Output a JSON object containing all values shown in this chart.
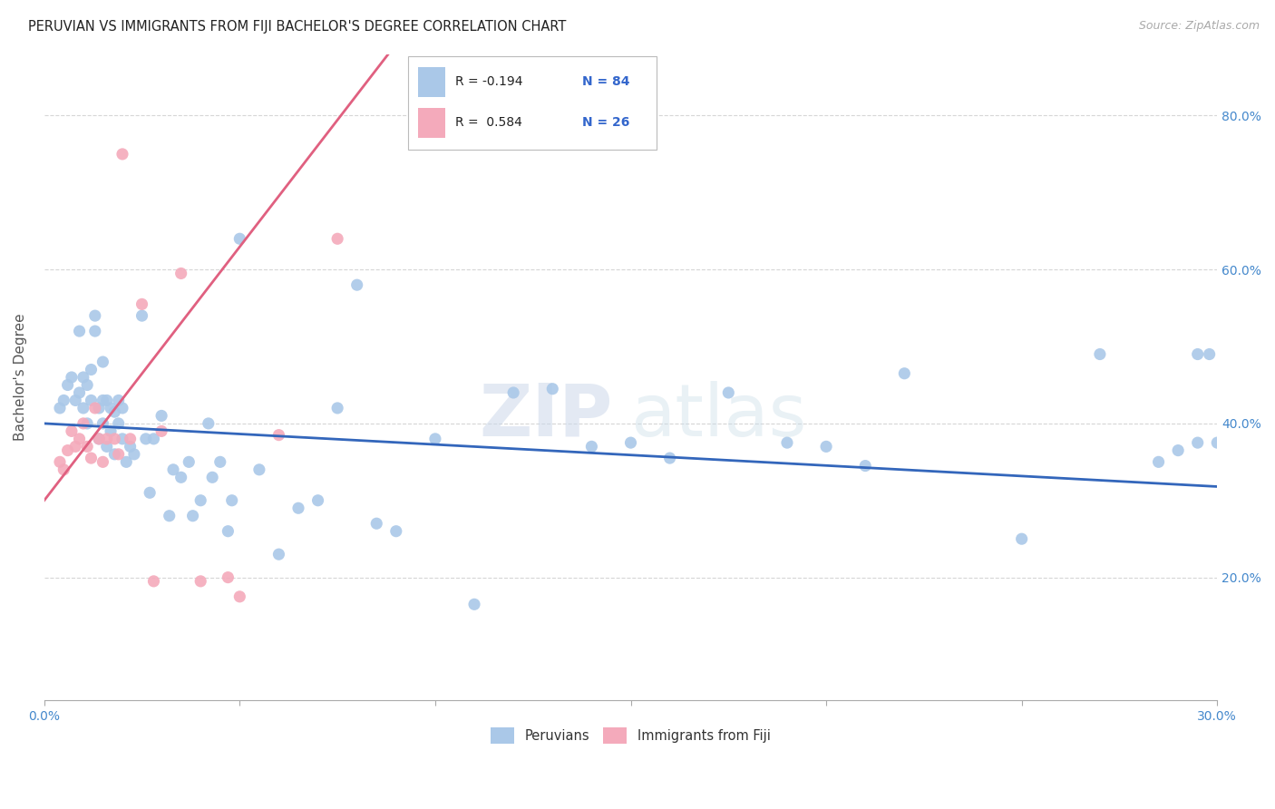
{
  "title": "PERUVIAN VS IMMIGRANTS FROM FIJI BACHELOR'S DEGREE CORRELATION CHART",
  "source": "Source: ZipAtlas.com",
  "ylabel": "Bachelor's Degree",
  "xlim": [
    0.0,
    0.3
  ],
  "ylim": [
    0.04,
    0.88
  ],
  "xtick_values": [
    0.0,
    0.05,
    0.1,
    0.15,
    0.2,
    0.25,
    0.3
  ],
  "ytick_values": [
    0.2,
    0.4,
    0.6,
    0.8
  ],
  "right_ytick_labels": [
    "20.0%",
    "40.0%",
    "60.0%",
    "80.0%"
  ],
  "right_ytick_values": [
    0.2,
    0.4,
    0.6,
    0.8
  ],
  "peruvian_color": "#aac8e8",
  "fiji_color": "#f4aabb",
  "peruvian_line_color": "#3366bb",
  "fiji_line_color": "#e06080",
  "watermark_zip": "ZIP",
  "watermark_atlas": "atlas",
  "peruvian_scatter_x": [
    0.004,
    0.005,
    0.006,
    0.007,
    0.008,
    0.009,
    0.009,
    0.01,
    0.01,
    0.011,
    0.011,
    0.012,
    0.012,
    0.013,
    0.013,
    0.014,
    0.014,
    0.015,
    0.015,
    0.015,
    0.016,
    0.016,
    0.017,
    0.017,
    0.018,
    0.018,
    0.019,
    0.019,
    0.02,
    0.02,
    0.021,
    0.022,
    0.023,
    0.025,
    0.026,
    0.027,
    0.028,
    0.03,
    0.032,
    0.033,
    0.035,
    0.037,
    0.038,
    0.04,
    0.042,
    0.043,
    0.045,
    0.047,
    0.048,
    0.05,
    0.055,
    0.06,
    0.065,
    0.07,
    0.075,
    0.08,
    0.085,
    0.09,
    0.1,
    0.11,
    0.12,
    0.13,
    0.14,
    0.15,
    0.16,
    0.175,
    0.19,
    0.2,
    0.21,
    0.22,
    0.25,
    0.27,
    0.285,
    0.29,
    0.295,
    0.295,
    0.298,
    0.3
  ],
  "peruvian_scatter_y": [
    0.42,
    0.43,
    0.45,
    0.46,
    0.43,
    0.44,
    0.52,
    0.42,
    0.46,
    0.4,
    0.45,
    0.43,
    0.47,
    0.52,
    0.54,
    0.38,
    0.42,
    0.4,
    0.43,
    0.48,
    0.37,
    0.43,
    0.39,
    0.42,
    0.36,
    0.415,
    0.4,
    0.43,
    0.38,
    0.42,
    0.35,
    0.37,
    0.36,
    0.54,
    0.38,
    0.31,
    0.38,
    0.41,
    0.28,
    0.34,
    0.33,
    0.35,
    0.28,
    0.3,
    0.4,
    0.33,
    0.35,
    0.26,
    0.3,
    0.64,
    0.34,
    0.23,
    0.29,
    0.3,
    0.42,
    0.58,
    0.27,
    0.26,
    0.38,
    0.165,
    0.44,
    0.445,
    0.37,
    0.375,
    0.355,
    0.44,
    0.375,
    0.37,
    0.345,
    0.465,
    0.25,
    0.49,
    0.35,
    0.365,
    0.49,
    0.375,
    0.49,
    0.375
  ],
  "fiji_scatter_x": [
    0.004,
    0.005,
    0.006,
    0.007,
    0.008,
    0.009,
    0.01,
    0.011,
    0.012,
    0.013,
    0.014,
    0.015,
    0.016,
    0.018,
    0.019,
    0.02,
    0.022,
    0.025,
    0.028,
    0.03,
    0.035,
    0.04,
    0.047,
    0.05,
    0.06,
    0.075
  ],
  "fiji_scatter_y": [
    0.35,
    0.34,
    0.365,
    0.39,
    0.37,
    0.38,
    0.4,
    0.37,
    0.355,
    0.42,
    0.38,
    0.35,
    0.38,
    0.38,
    0.36,
    0.75,
    0.38,
    0.555,
    0.195,
    0.39,
    0.595,
    0.195,
    0.2,
    0.175,
    0.385,
    0.64
  ],
  "peruvian_trend_x": [
    0.0,
    0.3
  ],
  "peruvian_trend_y": [
    0.4,
    0.318
  ],
  "fiji_trend_x": [
    0.0,
    0.088
  ],
  "fiji_trend_y": [
    0.3,
    0.88
  ]
}
